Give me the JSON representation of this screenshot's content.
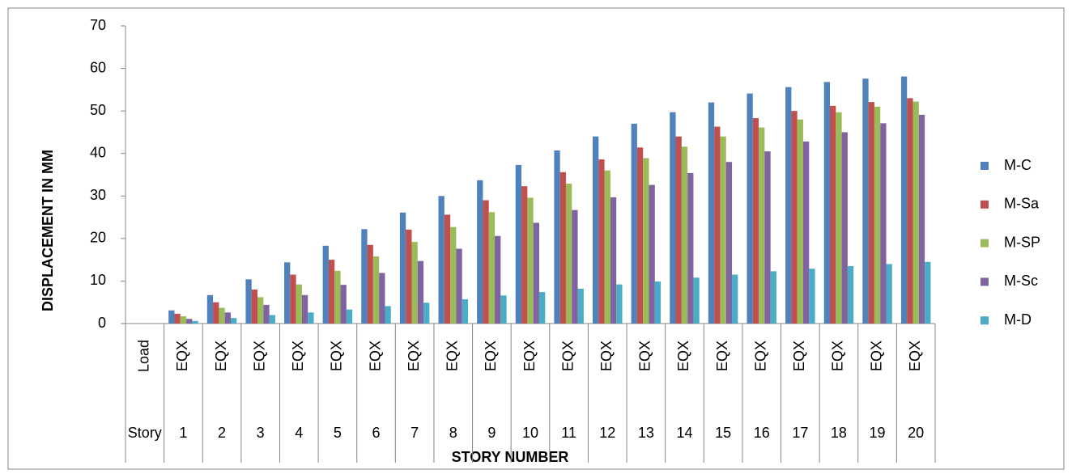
{
  "chart_data": {
    "type": "bar",
    "y_label": "DISPLACEMENT IN MM",
    "x_label": "STORY NUMBER",
    "categories": [
      "Load",
      "EQX",
      "EQX",
      "EQX",
      "EQX",
      "EQX",
      "EQX",
      "EQX",
      "EQX",
      "EQX",
      "EQX",
      "EQX",
      "EQX",
      "EQX",
      "EQX",
      "EQX",
      "EQX",
      "EQX",
      "EQX",
      "EQX",
      "EQX"
    ],
    "category_groups": [
      "Story",
      "1",
      "2",
      "3",
      "4",
      "5",
      "6",
      "7",
      "8",
      "9",
      "10",
      "11",
      "12",
      "13",
      "14",
      "15",
      "16",
      "17",
      "18",
      "19",
      "20"
    ],
    "series": [
      {
        "name": "M-C",
        "color": "#4f81bd",
        "values": [
          null,
          3.1,
          6.7,
          10.4,
          14.4,
          18.3,
          22.2,
          26.1,
          30,
          33.7,
          37.3,
          40.7,
          44,
          47,
          49.7,
          52,
          54.1,
          55.6,
          56.8,
          57.6,
          58.1
        ]
      },
      {
        "name": "M-Sa",
        "color": "#c0504d",
        "values": [
          null,
          2.3,
          5,
          8,
          11.5,
          15,
          18.5,
          22.1,
          25.6,
          29,
          32.3,
          35.6,
          38.6,
          41.4,
          44,
          46.3,
          48.3,
          50,
          51.2,
          52.1,
          53
        ]
      },
      {
        "name": "M-SP",
        "color": "#9bbb59",
        "values": [
          null,
          1.7,
          3.7,
          6.2,
          9.2,
          12.4,
          15.8,
          19.2,
          22.7,
          26.2,
          29.6,
          32.9,
          36,
          38.9,
          41.6,
          44,
          46.1,
          48,
          49.7,
          51,
          52.2
        ]
      },
      {
        "name": "M-Sc",
        "color": "#8064a2",
        "values": [
          null,
          1.1,
          2.6,
          4.4,
          6.7,
          9.1,
          11.9,
          14.7,
          17.6,
          20.6,
          23.7,
          26.7,
          29.7,
          32.6,
          35.4,
          38,
          40.5,
          42.8,
          45,
          47.1,
          49.1
        ]
      },
      {
        "name": "M-D",
        "color": "#4bacc6",
        "values": [
          null,
          0.6,
          1.3,
          2,
          2.6,
          3.3,
          4.1,
          4.9,
          5.7,
          6.6,
          7.4,
          8.2,
          9.2,
          9.9,
          10.8,
          11.5,
          12.3,
          12.9,
          13.5,
          14,
          14.5
        ]
      }
    ],
    "ylim": [
      0,
      70
    ],
    "yticks": [
      0,
      10,
      20,
      30,
      40,
      50,
      60,
      70
    ],
    "legend": "right"
  }
}
